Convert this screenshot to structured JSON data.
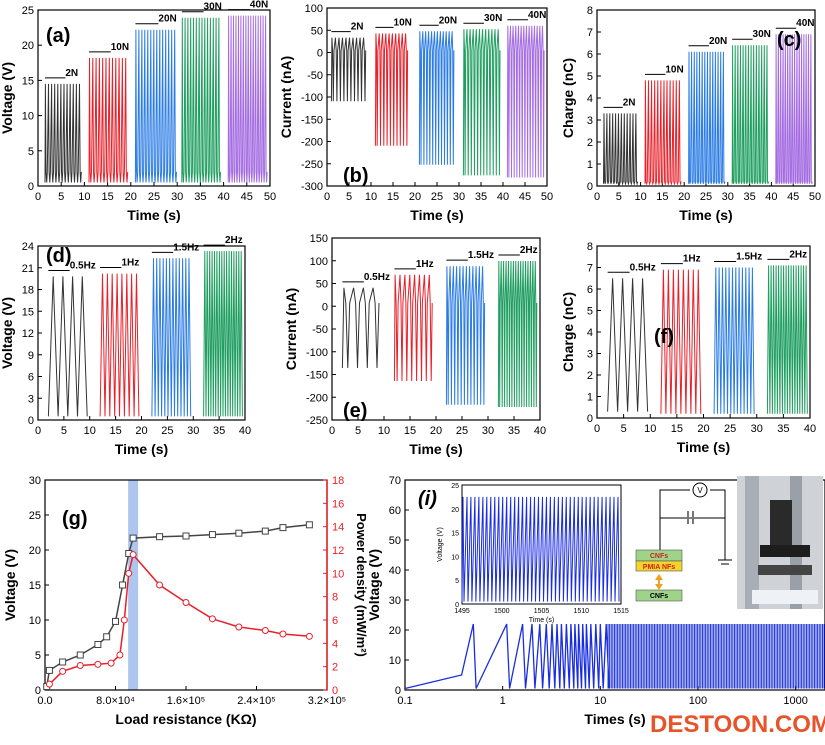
{
  "watermark": {
    "text": "DESTOON.COM",
    "color_main": "#e8542a",
    "color_dot": "#2a5aa8"
  },
  "chart_data": [
    {
      "panel": "(a)",
      "type": "line",
      "xlabel": "Time (s)",
      "ylabel": "Voltage (V)",
      "xlim": [
        0,
        50
      ],
      "ylim": [
        0,
        25
      ],
      "xticks": [
        "0",
        "5",
        "10",
        "15",
        "20",
        "25",
        "30",
        "35",
        "40",
        "45",
        "50"
      ],
      "yticks": [
        "0",
        "5",
        "10",
        "15",
        "20",
        "25"
      ],
      "series": [
        {
          "name": "2N",
          "color": "#333333",
          "t": [
            1.5,
            9.5
          ],
          "min": 0.5,
          "max": 14.5
        },
        {
          "name": "10N",
          "color": "#e8202a",
          "t": [
            11,
            19.5
          ],
          "min": 0.5,
          "max": 18.2
        },
        {
          "name": "20N",
          "color": "#2a7be4",
          "t": [
            21,
            30
          ],
          "min": 0.5,
          "max": 22.2
        },
        {
          "name": "30N",
          "color": "#1f9e60",
          "t": [
            31,
            39.5
          ],
          "min": 0.5,
          "max": 23.9
        },
        {
          "name": "40N",
          "color": "#a56de2",
          "t": [
            41,
            49.5
          ],
          "min": 0.5,
          "max": 24.2
        }
      ]
    },
    {
      "panel": "(b)",
      "type": "line",
      "xlabel": "Time (s)",
      "ylabel": "Current (nA)",
      "xlim": [
        0,
        50
      ],
      "ylim": [
        -320,
        100
      ],
      "xticks": [
        "0",
        "5",
        "10",
        "15",
        "20",
        "25",
        "30",
        "35",
        "40",
        "45",
        "50"
      ],
      "yticks": [
        "-300",
        "-250",
        "-200",
        "-150",
        "-100",
        "-50",
        "0",
        "50",
        "100"
      ],
      "series": [
        {
          "name": "2N",
          "color": "#333333",
          "t": [
            1,
            9
          ],
          "min": -120,
          "max": 30
        },
        {
          "name": "10N",
          "color": "#e8202a",
          "t": [
            11,
            18.5
          ],
          "min": -225,
          "max": 40
        },
        {
          "name": "20N",
          "color": "#2a7be4",
          "t": [
            21,
            29
          ],
          "min": -270,
          "max": 45
        },
        {
          "name": "30N",
          "color": "#1f9e60",
          "t": [
            31,
            39.5
          ],
          "min": -295,
          "max": 50
        },
        {
          "name": "40N",
          "color": "#a56de2",
          "t": [
            41,
            49.5
          ],
          "min": -300,
          "max": 58
        }
      ]
    },
    {
      "panel": "(c)",
      "type": "line",
      "xlabel": "Time (s)",
      "ylabel": "Charge (nC)",
      "xlim": [
        0,
        50
      ],
      "ylim": [
        0,
        8
      ],
      "xticks": [
        "0",
        "5",
        "10",
        "15",
        "20",
        "25",
        "30",
        "35",
        "40",
        "45",
        "50"
      ],
      "yticks": [
        "0",
        "1",
        "2",
        "3",
        "4",
        "5",
        "6",
        "7",
        "8"
      ],
      "series": [
        {
          "name": "2N",
          "color": "#333333",
          "t": [
            1.5,
            9.5
          ],
          "min": 0.1,
          "max": 3.3
        },
        {
          "name": "10N",
          "color": "#e8202a",
          "t": [
            11,
            19.5
          ],
          "min": 0.1,
          "max": 4.8
        },
        {
          "name": "20N",
          "color": "#2a7be4",
          "t": [
            21,
            29.5
          ],
          "min": 0.1,
          "max": 6.1
        },
        {
          "name": "30N",
          "color": "#1f9e60",
          "t": [
            31,
            39.5
          ],
          "min": 0.1,
          "max": 6.4
        },
        {
          "name": "40N",
          "color": "#a56de2",
          "t": [
            41,
            49.5
          ],
          "min": 0.1,
          "max": 6.9
        }
      ]
    },
    {
      "panel": "(d)",
      "type": "line",
      "xlabel": "Time (s)",
      "ylabel": "Voltage (V)",
      "xlim": [
        0,
        40
      ],
      "ylim": [
        0,
        24
      ],
      "xticks": [
        "0",
        "5",
        "10",
        "15",
        "20",
        "25",
        "30",
        "35",
        "40"
      ],
      "yticks": [
        "0",
        "3",
        "6",
        "9",
        "12",
        "15",
        "18",
        "21",
        "24"
      ],
      "series": [
        {
          "name": "0.5Hz",
          "color": "#333333",
          "t": [
            2,
            9.5
          ],
          "min": 0.5,
          "max": 19.8
        },
        {
          "name": "1Hz",
          "color": "#e8202a",
          "t": [
            12,
            19.5
          ],
          "min": 0.5,
          "max": 20.2
        },
        {
          "name": "1.5Hz",
          "color": "#2a7be4",
          "t": [
            22,
            29.5
          ],
          "min": 0.5,
          "max": 22.3
        },
        {
          "name": "2Hz",
          "color": "#1f9e60",
          "t": [
            32,
            39.5
          ],
          "min": 0.5,
          "max": 23.3
        }
      ]
    },
    {
      "panel": "(e)",
      "type": "line",
      "xlabel": "Time (s)",
      "ylabel": "Current (nA)",
      "xlim": [
        0,
        40
      ],
      "ylim": [
        -270,
        150
      ],
      "xticks": [
        "0",
        "5",
        "10",
        "15",
        "20",
        "25",
        "30",
        "35",
        "40"
      ],
      "yticks": [
        "-250",
        "-200",
        "-150",
        "-100",
        "-50",
        "0",
        "50",
        "100",
        "150"
      ],
      "series": [
        {
          "name": "0.5Hz",
          "color": "#333333",
          "t": [
            2,
            9.5
          ],
          "min": -150,
          "max": 35
        },
        {
          "name": "1Hz",
          "color": "#e8202a",
          "t": [
            12,
            19.5
          ],
          "min": -180,
          "max": 65
        },
        {
          "name": "1.5Hz",
          "color": "#2a7be4",
          "t": [
            22,
            29.5
          ],
          "min": -235,
          "max": 85
        },
        {
          "name": "2Hz",
          "color": "#1f9e60",
          "t": [
            32,
            39.5
          ],
          "min": -240,
          "max": 97
        }
      ]
    },
    {
      "panel": "(f)",
      "type": "line",
      "xlabel": "Time (s)",
      "ylabel": "Charge (nC)",
      "xlim": [
        0,
        40
      ],
      "ylim": [
        0,
        8
      ],
      "xticks": [
        "0",
        "5",
        "10",
        "15",
        "20",
        "25",
        "30",
        "35",
        "40"
      ],
      "yticks": [
        "0",
        "1",
        "2",
        "3",
        "4",
        "5",
        "6",
        "7",
        "8"
      ],
      "series": [
        {
          "name": "0.5Hz",
          "color": "#333333",
          "t": [
            2,
            9.5
          ],
          "min": 0.3,
          "max": 6.5
        },
        {
          "name": "1Hz",
          "color": "#e8202a",
          "t": [
            12,
            19.5
          ],
          "min": 0.2,
          "max": 6.9
        },
        {
          "name": "1.5Hz",
          "color": "#2a7be4",
          "t": [
            22,
            29.5
          ],
          "min": 0.2,
          "max": 7.0
        },
        {
          "name": "2Hz",
          "color": "#1f9e60",
          "t": [
            32,
            39.5
          ],
          "min": 0.2,
          "max": 7.1
        }
      ]
    },
    {
      "panel": "(g)",
      "type": "line",
      "xlabel": "Load resistance (KΩ)",
      "ylabel": "Voltage (V)",
      "ylabel2": "Power density (mW/m²)",
      "xlim": [
        0,
        320000
      ],
      "ylim": [
        0,
        30
      ],
      "y2lim": [
        0,
        18
      ],
      "xticks": [
        "0.0",
        "8.0×10⁴",
        "1.6×10⁵",
        "2.4×10⁵",
        "3.2×10⁵"
      ],
      "yticks": [
        "0",
        "5",
        "10",
        "15",
        "20",
        "25",
        "30"
      ],
      "y2ticks": [
        "0",
        "2",
        "4",
        "6",
        "8",
        "10",
        "12",
        "14",
        "16",
        "18"
      ],
      "highlight_x": 100000,
      "highlight_color": "#9ab8ea",
      "series": [
        {
          "name": "Voltage",
          "color": "#444444",
          "axis": "left",
          "x": [
            2000,
            5000,
            20000,
            40000,
            60000,
            70000,
            80000,
            88000,
            95000,
            100000,
            130000,
            160000,
            190000,
            220000,
            250000,
            270000,
            300000
          ],
          "y": [
            0.5,
            2.8,
            4.0,
            5.0,
            6.5,
            7.6,
            9.8,
            15.0,
            19.5,
            21.7,
            21.9,
            22.0,
            22.2,
            22.4,
            22.7,
            23.2,
            23.6
          ]
        },
        {
          "name": "Power density",
          "color": "#e8202a",
          "axis": "right",
          "x": [
            5000,
            20000,
            40000,
            60000,
            75000,
            85000,
            90000,
            95000,
            100000,
            130000,
            160000,
            190000,
            220000,
            250000,
            270000,
            300000
          ],
          "y": [
            0.5,
            1.6,
            2.1,
            2.2,
            2.3,
            3.0,
            6.0,
            10.0,
            11.6,
            9.0,
            7.5,
            6.1,
            5.4,
            5.1,
            4.8,
            4.6
          ]
        }
      ]
    },
    {
      "panel": "(i)",
      "type": "line",
      "xlabel": "Times (s)",
      "ylabel": "Voltage (V)",
      "xscale": "log",
      "xlim": [
        0.1,
        2000
      ],
      "ylim": [
        0,
        70
      ],
      "xticks": [
        "0.1",
        "1",
        "10",
        "100",
        "1000"
      ],
      "yticks": [
        "0",
        "10",
        "20",
        "30",
        "40",
        "50",
        "60",
        "70"
      ],
      "series": [
        {
          "name": "",
          "color": "#1a2ee0",
          "peaks": [
            0.5,
            1.1,
            1.6,
            2.0,
            2.4,
            2.8,
            3.2,
            3.6,
            4.0,
            4.5,
            5,
            5.5,
            6,
            6.6,
            7.2,
            8,
            9,
            10,
            11.5
          ],
          "min": 0.5,
          "max": 22
        }
      ],
      "inset": {
        "xlabel": "Time (s)",
        "ylabel": "Voltage (V)",
        "xlim": [
          1495,
          1515
        ],
        "ylim": [
          0,
          25
        ],
        "xticks": [
          "1495",
          "1500",
          "1505",
          "1510",
          "1515"
        ],
        "yticks": [
          "0",
          "5",
          "10",
          "15",
          "20",
          "25"
        ],
        "color": "#1a2ee0",
        "min": 0.5,
        "max": 22.5,
        "period": 0.5
      },
      "schematic": {
        "layers": [
          "CNFs",
          "PMIA NFs",
          "CNFs"
        ],
        "meter": "V"
      }
    }
  ]
}
